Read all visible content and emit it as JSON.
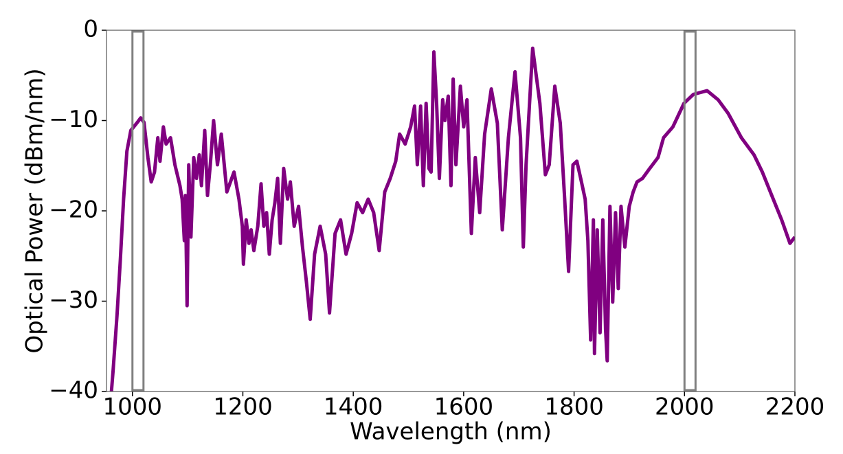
{
  "chart_data": {
    "type": "line",
    "xlabel": "Wavelength (nm)",
    "ylabel": "Optical Power (dBm/nm)",
    "xlim": [
      953,
      2200
    ],
    "ylim": [
      -40,
      0
    ],
    "xticks": [
      1000,
      1200,
      1400,
      1600,
      1800,
      2000,
      2200
    ],
    "yticks": [
      {
        "value": -40,
        "label": "−40"
      },
      {
        "value": -30,
        "label": "−30"
      },
      {
        "value": -20,
        "label": "−20"
      },
      {
        "value": -10,
        "label": "−10"
      },
      0
    ],
    "grid": false,
    "highlight_spans": [
      [
        1000,
        1020
      ],
      [
        2000,
        2020
      ]
    ],
    "highlight_color": "#808080",
    "x": [
      962,
      965,
      972,
      978,
      984,
      990,
      997,
      1009,
      1015,
      1021,
      1028,
      1034,
      1040,
      1046,
      1050,
      1056,
      1061,
      1069,
      1077,
      1086,
      1090,
      1094,
      1096,
      1099,
      1102,
      1106,
      1111,
      1116,
      1121,
      1125,
      1131,
      1136,
      1141,
      1147,
      1154,
      1161,
      1171,
      1184,
      1193,
      1199,
      1201,
      1206,
      1211,
      1215,
      1220,
      1227,
      1233,
      1238,
      1243,
      1248,
      1253,
      1258,
      1263,
      1268,
      1274,
      1281,
      1286,
      1293,
      1301,
      1308,
      1315,
      1322,
      1330,
      1340,
      1350,
      1357,
      1367,
      1377,
      1387,
      1397,
      1407,
      1417,
      1427,
      1437,
      1447,
      1457,
      1467,
      1477,
      1484,
      1494,
      1504,
      1511,
      1516,
      1522,
      1527,
      1532,
      1537,
      1541,
      1546,
      1551,
      1556,
      1562,
      1566,
      1572,
      1577,
      1581,
      1586,
      1594,
      1600,
      1606,
      1614,
      1621,
      1629,
      1638,
      1650,
      1661,
      1670,
      1681,
      1693,
      1703,
      1708,
      1713,
      1725,
      1738,
      1748,
      1755,
      1765,
      1775,
      1783,
      1790,
      1798,
      1805,
      1812,
      1820,
      1825,
      1830,
      1835,
      1837,
      1842,
      1847,
      1852,
      1857,
      1860,
      1865,
      1870,
      1875,
      1880,
      1885,
      1892,
      1900,
      1907,
      1914,
      1924,
      1937,
      1952,
      1962,
      1979,
      1999,
      2016,
      2041,
      2061,
      2079,
      2103,
      2126,
      2141,
      2158,
      2176,
      2191,
      2200
    ],
    "series": [
      {
        "name": "Optical power",
        "color": "#800080",
        "values": [
          -40,
          -37.7,
          -31.6,
          -25.5,
          -18.7,
          -13.4,
          -11.1,
          -10.2,
          -9.7,
          -10.2,
          -14.1,
          -16.8,
          -15.7,
          -11.9,
          -14.5,
          -10.7,
          -12.6,
          -11.9,
          -14.9,
          -17.2,
          -18.7,
          -23.3,
          -18.3,
          -30.5,
          -14.9,
          -22.9,
          -14.1,
          -16.4,
          -13.8,
          -17.2,
          -11.1,
          -18.3,
          -14.9,
          -10.0,
          -14.9,
          -11.5,
          -17.9,
          -15.7,
          -18.7,
          -21.7,
          -25.9,
          -21.0,
          -23.6,
          -22.1,
          -24.4,
          -21.7,
          -17.0,
          -21.7,
          -20.2,
          -24.8,
          -21.0,
          -19.1,
          -16.4,
          -23.6,
          -15.3,
          -18.7,
          -16.8,
          -21.7,
          -19.5,
          -24.0,
          -27.8,
          -32.0,
          -24.8,
          -21.7,
          -24.8,
          -31.3,
          -22.5,
          -21.0,
          -24.8,
          -22.5,
          -19.1,
          -20.2,
          -18.7,
          -20.2,
          -24.4,
          -17.9,
          -16.4,
          -14.5,
          -11.5,
          -12.6,
          -10.7,
          -8.4,
          -14.9,
          -8.4,
          -17.2,
          -8.1,
          -15.3,
          -15.7,
          -2.4,
          -8.1,
          -16.4,
          -7.7,
          -10.0,
          -7.3,
          -17.2,
          -5.4,
          -14.9,
          -6.2,
          -10.7,
          -7.7,
          -22.5,
          -14.1,
          -20.2,
          -11.5,
          -6.5,
          -10.3,
          -22.1,
          -11.9,
          -4.6,
          -11.9,
          -24.0,
          -14.9,
          -2.0,
          -8.1,
          -16.0,
          -14.9,
          -6.2,
          -10.3,
          -18.7,
          -26.7,
          -14.9,
          -14.5,
          -16.4,
          -18.7,
          -23.3,
          -34.3,
          -21.0,
          -35.8,
          -22.1,
          -33.5,
          -21.0,
          -33.1,
          -36.6,
          -19.5,
          -30.1,
          -20.2,
          -28.6,
          -19.5,
          -24.0,
          -19.5,
          -17.9,
          -16.8,
          -16.4,
          -15.3,
          -14.1,
          -11.9,
          -10.7,
          -8.1,
          -7.1,
          -6.7,
          -7.7,
          -9.2,
          -11.9,
          -13.8,
          -15.7,
          -18.3,
          -21.0,
          -23.6,
          -22.9
        ]
      }
    ]
  }
}
